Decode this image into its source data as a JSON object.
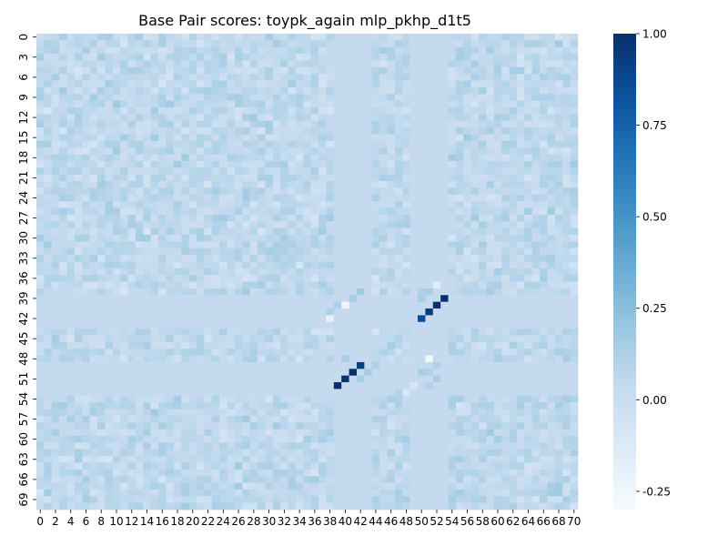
{
  "chart_data": {
    "type": "heatmap",
    "title": "Base Pair scores: toypk_again mlp_pkhp_d1t5",
    "xlabel": "",
    "ylabel": "",
    "n_rows": 71,
    "n_cols": 71,
    "x_tick_labels": [
      "0",
      "2",
      "4",
      "6",
      "8",
      "10",
      "12",
      "14",
      "16",
      "18",
      "20",
      "22",
      "24",
      "26",
      "28",
      "30",
      "32",
      "34",
      "36",
      "38",
      "40",
      "42",
      "44",
      "46",
      "48",
      "50",
      "52",
      "54",
      "56",
      "58",
      "60",
      "62",
      "64",
      "66",
      "68",
      "70"
    ],
    "y_tick_labels": [
      "0",
      "3",
      "6",
      "9",
      "12",
      "15",
      "18",
      "21",
      "24",
      "27",
      "30",
      "33",
      "36",
      "39",
      "42",
      "45",
      "48",
      "51",
      "54",
      "57",
      "60",
      "63",
      "66",
      "69"
    ],
    "colorbar": {
      "min": -0.3,
      "max": 1.0,
      "ticks": [
        "1.00",
        "0.75",
        "0.50",
        "0.25",
        "0.00",
        "-0.25"
      ],
      "tick_values": [
        1.0,
        0.75,
        0.5,
        0.25,
        0.0,
        -0.25
      ]
    },
    "colormap": "Blues",
    "colormap_stops": [
      "#f7fbff",
      "#deebf7",
      "#c6dbef",
      "#9ecae1",
      "#6baed6",
      "#4292c6",
      "#2171b5",
      "#08519c",
      "#08306b"
    ],
    "background_value": 0.03,
    "uniform_bands": {
      "rows": [
        39,
        40,
        41,
        42,
        43,
        49,
        50,
        51,
        52,
        53
      ],
      "cols": [
        39,
        40,
        41,
        42,
        43,
        49,
        50,
        51,
        52,
        53
      ],
      "value": 0.03
    },
    "noise_range": [
      -0.08,
      0.18
    ],
    "strong_pairs": [
      {
        "row": 39,
        "col": 53,
        "value": 1.0
      },
      {
        "row": 40,
        "col": 52,
        "value": 1.0
      },
      {
        "row": 41,
        "col": 51,
        "value": 0.95
      },
      {
        "row": 42,
        "col": 50,
        "value": 0.85
      },
      {
        "row": 49,
        "col": 42,
        "value": 0.92
      },
      {
        "row": 50,
        "col": 41,
        "value": 1.0
      },
      {
        "row": 51,
        "col": 40,
        "value": 1.0
      },
      {
        "row": 52,
        "col": 39,
        "value": 1.0
      }
    ],
    "weak_pairs": [
      {
        "row": 38,
        "col": 42,
        "value": 0.18
      },
      {
        "row": 39,
        "col": 41,
        "value": 0.15
      },
      {
        "row": 40,
        "col": 39,
        "value": 0.12
      },
      {
        "row": 40,
        "col": 40,
        "value": -0.25
      },
      {
        "row": 41,
        "col": 38,
        "value": 0.12
      },
      {
        "row": 42,
        "col": 38,
        "value": -0.2
      },
      {
        "row": 38,
        "col": 50,
        "value": 0.12
      },
      {
        "row": 39,
        "col": 50,
        "value": 0.15
      },
      {
        "row": 38,
        "col": 51,
        "value": 0.15
      },
      {
        "row": 37,
        "col": 52,
        "value": -0.15
      },
      {
        "row": 48,
        "col": 40,
        "value": 0.15
      },
      {
        "row": 49,
        "col": 44,
        "value": 0.12
      },
      {
        "row": 50,
        "col": 43,
        "value": 0.15
      },
      {
        "row": 51,
        "col": 42,
        "value": 0.15
      },
      {
        "row": 49,
        "col": 52,
        "value": 0.12
      },
      {
        "row": 50,
        "col": 50,
        "value": 0.15
      },
      {
        "row": 50,
        "col": 51,
        "value": 0.12
      },
      {
        "row": 48,
        "col": 51,
        "value": -0.25
      },
      {
        "row": 51,
        "col": 52,
        "value": 0.15
      },
      {
        "row": 52,
        "col": 51,
        "value": 0.12
      },
      {
        "row": 53,
        "col": 48,
        "value": -0.1
      },
      {
        "row": 53,
        "col": 47,
        "value": 0.1
      },
      {
        "row": 52,
        "col": 49,
        "value": -0.1
      }
    ]
  }
}
